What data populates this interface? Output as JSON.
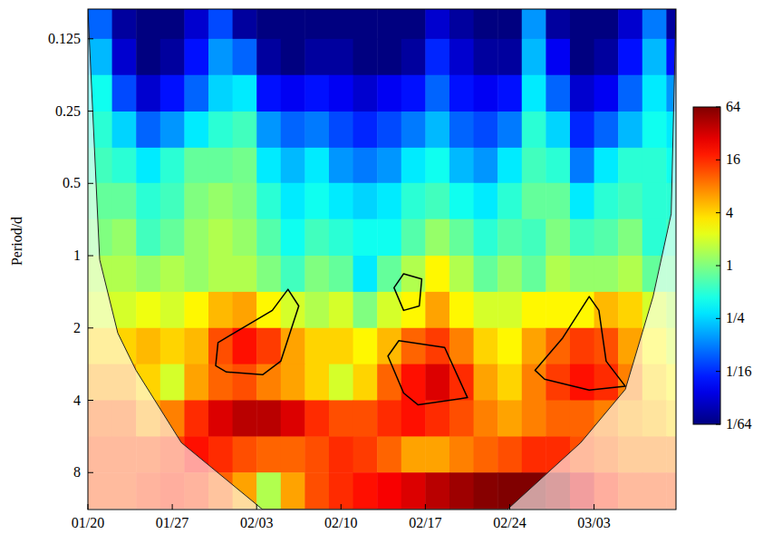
{
  "chart_data": {
    "type": "heatmap",
    "y_label": "Period/d",
    "log": "y",
    "xlim": [
      0,
      48.8
    ],
    "xticks": [
      {
        "value": 0,
        "label": "01/20"
      },
      {
        "value": 7,
        "label": "01/27"
      },
      {
        "value": 14,
        "label": "02/03"
      },
      {
        "value": 21,
        "label": "02/10"
      },
      {
        "value": 28,
        "label": "02/17"
      },
      {
        "value": 35,
        "label": "02/24"
      },
      {
        "value": 42,
        "label": "03/03"
      }
    ],
    "ylim": [
      0.094,
      11.4
    ],
    "yticks": [
      0.125,
      0.25,
      0.5,
      1,
      2,
      4,
      8
    ],
    "cells": {
      "x": [
        1,
        3,
        5,
        7,
        9,
        11,
        13,
        15,
        17,
        19,
        21,
        23,
        25,
        27,
        29,
        31,
        33,
        35,
        37,
        39,
        41,
        43,
        45,
        47,
        49
      ],
      "y": [
        0.105,
        0.149,
        0.21,
        0.3,
        0.42,
        0.59,
        0.84,
        1.19,
        1.68,
        2.38,
        3.36,
        4.76,
        6.73,
        9.5
      ],
      "values": [
        [
          0.1,
          0.02,
          0.012,
          0.012,
          0.03,
          0.08,
          0.02,
          0.012,
          0.012,
          0.012,
          0.015,
          0.012,
          0.012,
          0.012,
          0.03,
          0.02,
          0.012,
          0.012,
          0.15,
          0.02,
          0.012,
          0.012,
          0.03,
          0.12,
          0.02
        ],
        [
          0.2,
          0.03,
          0.015,
          0.02,
          0.05,
          0.15,
          0.1,
          0.02,
          0.015,
          0.02,
          0.02,
          0.015,
          0.015,
          0.02,
          0.06,
          0.03,
          0.02,
          0.02,
          0.2,
          0.04,
          0.015,
          0.02,
          0.05,
          0.2,
          0.05
        ],
        [
          0.4,
          0.08,
          0.03,
          0.05,
          0.1,
          0.25,
          0.3,
          0.05,
          0.04,
          0.05,
          0.04,
          0.03,
          0.04,
          0.05,
          0.1,
          0.05,
          0.04,
          0.05,
          0.3,
          0.1,
          0.03,
          0.04,
          0.1,
          0.3,
          0.15
        ],
        [
          0.5,
          0.25,
          0.1,
          0.15,
          0.3,
          0.5,
          0.6,
          0.15,
          0.1,
          0.12,
          0.08,
          0.06,
          0.08,
          0.12,
          0.2,
          0.1,
          0.08,
          0.12,
          0.5,
          0.25,
          0.06,
          0.1,
          0.2,
          0.4,
          0.3
        ],
        [
          0.6,
          0.5,
          0.3,
          0.5,
          0.8,
          0.8,
          0.9,
          0.3,
          0.2,
          0.3,
          0.15,
          0.12,
          0.15,
          0.3,
          0.4,
          0.2,
          0.15,
          0.3,
          0.6,
          0.5,
          0.12,
          0.3,
          0.5,
          0.5,
          0.4
        ],
        [
          0.8,
          0.8,
          0.5,
          0.6,
          1.0,
          1.2,
          1.0,
          0.5,
          0.3,
          0.4,
          0.3,
          0.25,
          0.3,
          0.5,
          0.6,
          0.4,
          0.3,
          0.5,
          0.8,
          0.8,
          0.3,
          0.5,
          0.6,
          0.5,
          0.5
        ],
        [
          1.0,
          1.2,
          0.6,
          0.8,
          1.2,
          1.5,
          1.2,
          0.7,
          0.4,
          0.6,
          0.5,
          0.4,
          0.4,
          0.7,
          1.2,
          0.8,
          0.5,
          0.7,
          0.6,
          1.0,
          0.6,
          0.7,
          1.0,
          0.5,
          0.6
        ],
        [
          1.5,
          1.5,
          1.2,
          1.5,
          1.2,
          1.5,
          1.5,
          1.0,
          0.6,
          1.0,
          0.8,
          0.3,
          0.8,
          1.5,
          3,
          1.5,
          0.8,
          1.2,
          0.8,
          1.5,
          1.2,
          1.2,
          1.5,
          0.8,
          0.8
        ],
        [
          2,
          2,
          2.5,
          2,
          3,
          5,
          6,
          3,
          2,
          1.5,
          2,
          1,
          2,
          3,
          6,
          3,
          2,
          2,
          3,
          3,
          3,
          5,
          4,
          2,
          1.5
        ],
        [
          4,
          4,
          5,
          4,
          5,
          12,
          20,
          14,
          6,
          4,
          4,
          3,
          5,
          10,
          14,
          8,
          4,
          3,
          6,
          10,
          14,
          12,
          6,
          3,
          2
        ],
        [
          6,
          6,
          4,
          2,
          6,
          10,
          12,
          8,
          6,
          4,
          2,
          4,
          10,
          20,
          30,
          16,
          6,
          4,
          8,
          14,
          20,
          16,
          8,
          4,
          3
        ],
        [
          10,
          10,
          6,
          8,
          16,
          30,
          40,
          40,
          30,
          16,
          12,
          12,
          16,
          20,
          16,
          12,
          8,
          6,
          8,
          10,
          10,
          8,
          6,
          5,
          4
        ],
        [
          12,
          12,
          12,
          14,
          20,
          16,
          12,
          10,
          10,
          12,
          16,
          14,
          10,
          6,
          6,
          8,
          10,
          12,
          16,
          16,
          12,
          10,
          8,
          8,
          8
        ],
        [
          12,
          12,
          14,
          16,
          14,
          10,
          6,
          1.5,
          6,
          12,
          16,
          20,
          24,
          30,
          40,
          50,
          60,
          64,
          64,
          50,
          30,
          16,
          12,
          12,
          12
        ]
      ]
    },
    "coi": {
      "x": [
        0,
        0.98,
        2.48,
        3.99,
        7.75,
        14.5,
        34.8,
        40.9,
        44.6,
        46.9,
        48.4,
        48.8
      ],
      "y": [
        0.094,
        1.04,
        2.1,
        3.0,
        6.0,
        11.4,
        11.4,
        6.0,
        3.6,
        1.48,
        0.67,
        0.094
      ]
    },
    "significance": [
      {
        "x": [
          10.6,
          10.8,
          15.3,
          16.6,
          17.5,
          16.0,
          14.5,
          11.5
        ],
        "y": [
          2.87,
          2.3,
          1.69,
          1.38,
          1.62,
          2.75,
          3.13,
          3.05
        ]
      },
      {
        "x": [
          24.9,
          25.8,
          29.6,
          31.5,
          27.4,
          26.2
        ],
        "y": [
          2.62,
          2.26,
          2.41,
          3.9,
          4.18,
          3.73
        ]
      },
      {
        "x": [
          37.1,
          39.4,
          41.6,
          42.4,
          43.0,
          44.6,
          41.6,
          37.9
        ],
        "y": [
          3.0,
          2.2,
          1.48,
          1.69,
          2.75,
          3.5,
          3.63,
          3.27
        ]
      },
      {
        "x": [
          25.4,
          26.2,
          27.7,
          27.5,
          26.2
        ],
        "y": [
          1.36,
          1.19,
          1.25,
          1.62,
          1.69
        ]
      }
    ],
    "colorbar": {
      "range": [
        0.015625,
        64
      ],
      "ticks": [
        64,
        16,
        4,
        1,
        {
          "value": 0.25,
          "label": "1/4"
        },
        {
          "value": 0.0625,
          "label": "1/16"
        },
        {
          "value": 0.015625,
          "label": "1/64"
        }
      ]
    }
  }
}
